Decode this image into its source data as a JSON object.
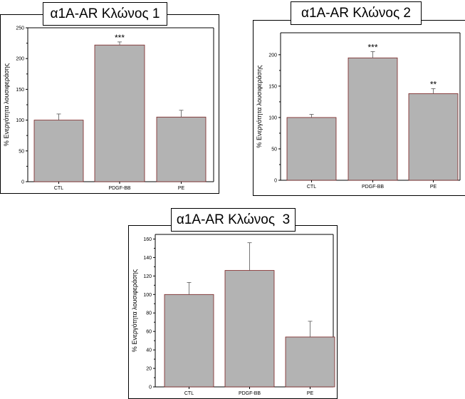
{
  "chart_data": [
    {
      "type": "bar",
      "title": "α1A-AR Κλώνος 1",
      "ylabel": "% Ενεργότητα λουσιφεράσης",
      "categories": [
        "CTL",
        "PDGF-BB",
        "PE"
      ],
      "values": [
        100,
        222,
        105
      ],
      "errors": [
        10,
        5,
        11
      ],
      "significance": [
        "",
        "***",
        ""
      ],
      "ylim": [
        0,
        250
      ],
      "yticks": [
        0,
        50,
        100,
        150,
        200,
        250
      ],
      "grid": false,
      "bar_color": "#b3b3b3",
      "bar_edge_color": "#7a2020"
    },
    {
      "type": "bar",
      "title": "α1A-AR Κλώνος 2",
      "ylabel": "% Ενεργότητα λουσιφεράσης",
      "categories": [
        "CTL",
        "PDGF-BB",
        "PE"
      ],
      "values": [
        100,
        195,
        138
      ],
      "errors": [
        5,
        10,
        8
      ],
      "significance": [
        "",
        "***",
        "**"
      ],
      "ylim": [
        0,
        235
      ],
      "yticks": [
        0,
        50,
        100,
        150,
        200
      ],
      "grid": false,
      "bar_color": "#b3b3b3",
      "bar_edge_color": "#7a2020"
    },
    {
      "type": "bar",
      "title": "α1A-AR Κλώνος  3",
      "ylabel": "% Ενεργότητα λουσιφεράσης",
      "categories": [
        "CTL",
        "PDGF-BB",
        "PE"
      ],
      "values": [
        100,
        126,
        54
      ],
      "errors": [
        13,
        30,
        17
      ],
      "significance": [
        "",
        "",
        ""
      ],
      "ylim": [
        0,
        165
      ],
      "yticks": [
        0,
        20,
        40,
        60,
        80,
        100,
        120,
        140,
        160
      ],
      "grid": false,
      "bar_color": "#b3b3b3",
      "bar_edge_color": "#7a2020"
    }
  ]
}
